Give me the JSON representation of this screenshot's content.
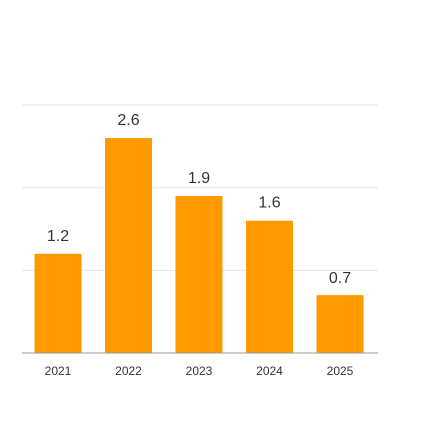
{
  "chart_data": {
    "type": "bar",
    "categories": [
      "2021",
      "2022",
      "2023",
      "2024",
      "2025"
    ],
    "values": [
      1.2,
      2.6,
      1.9,
      1.6,
      0.7
    ],
    "value_labels": [
      "1.2",
      "2.6",
      "1.9",
      "1.6",
      "0.7"
    ],
    "title": "",
    "xlabel": "",
    "ylabel": "",
    "ylim": [
      0,
      3
    ],
    "grid": true,
    "legend": "none",
    "colors": {
      "bar": "#FF9900",
      "grid": "#e6e6e6",
      "axis": "#999999",
      "text": "#333333"
    }
  }
}
